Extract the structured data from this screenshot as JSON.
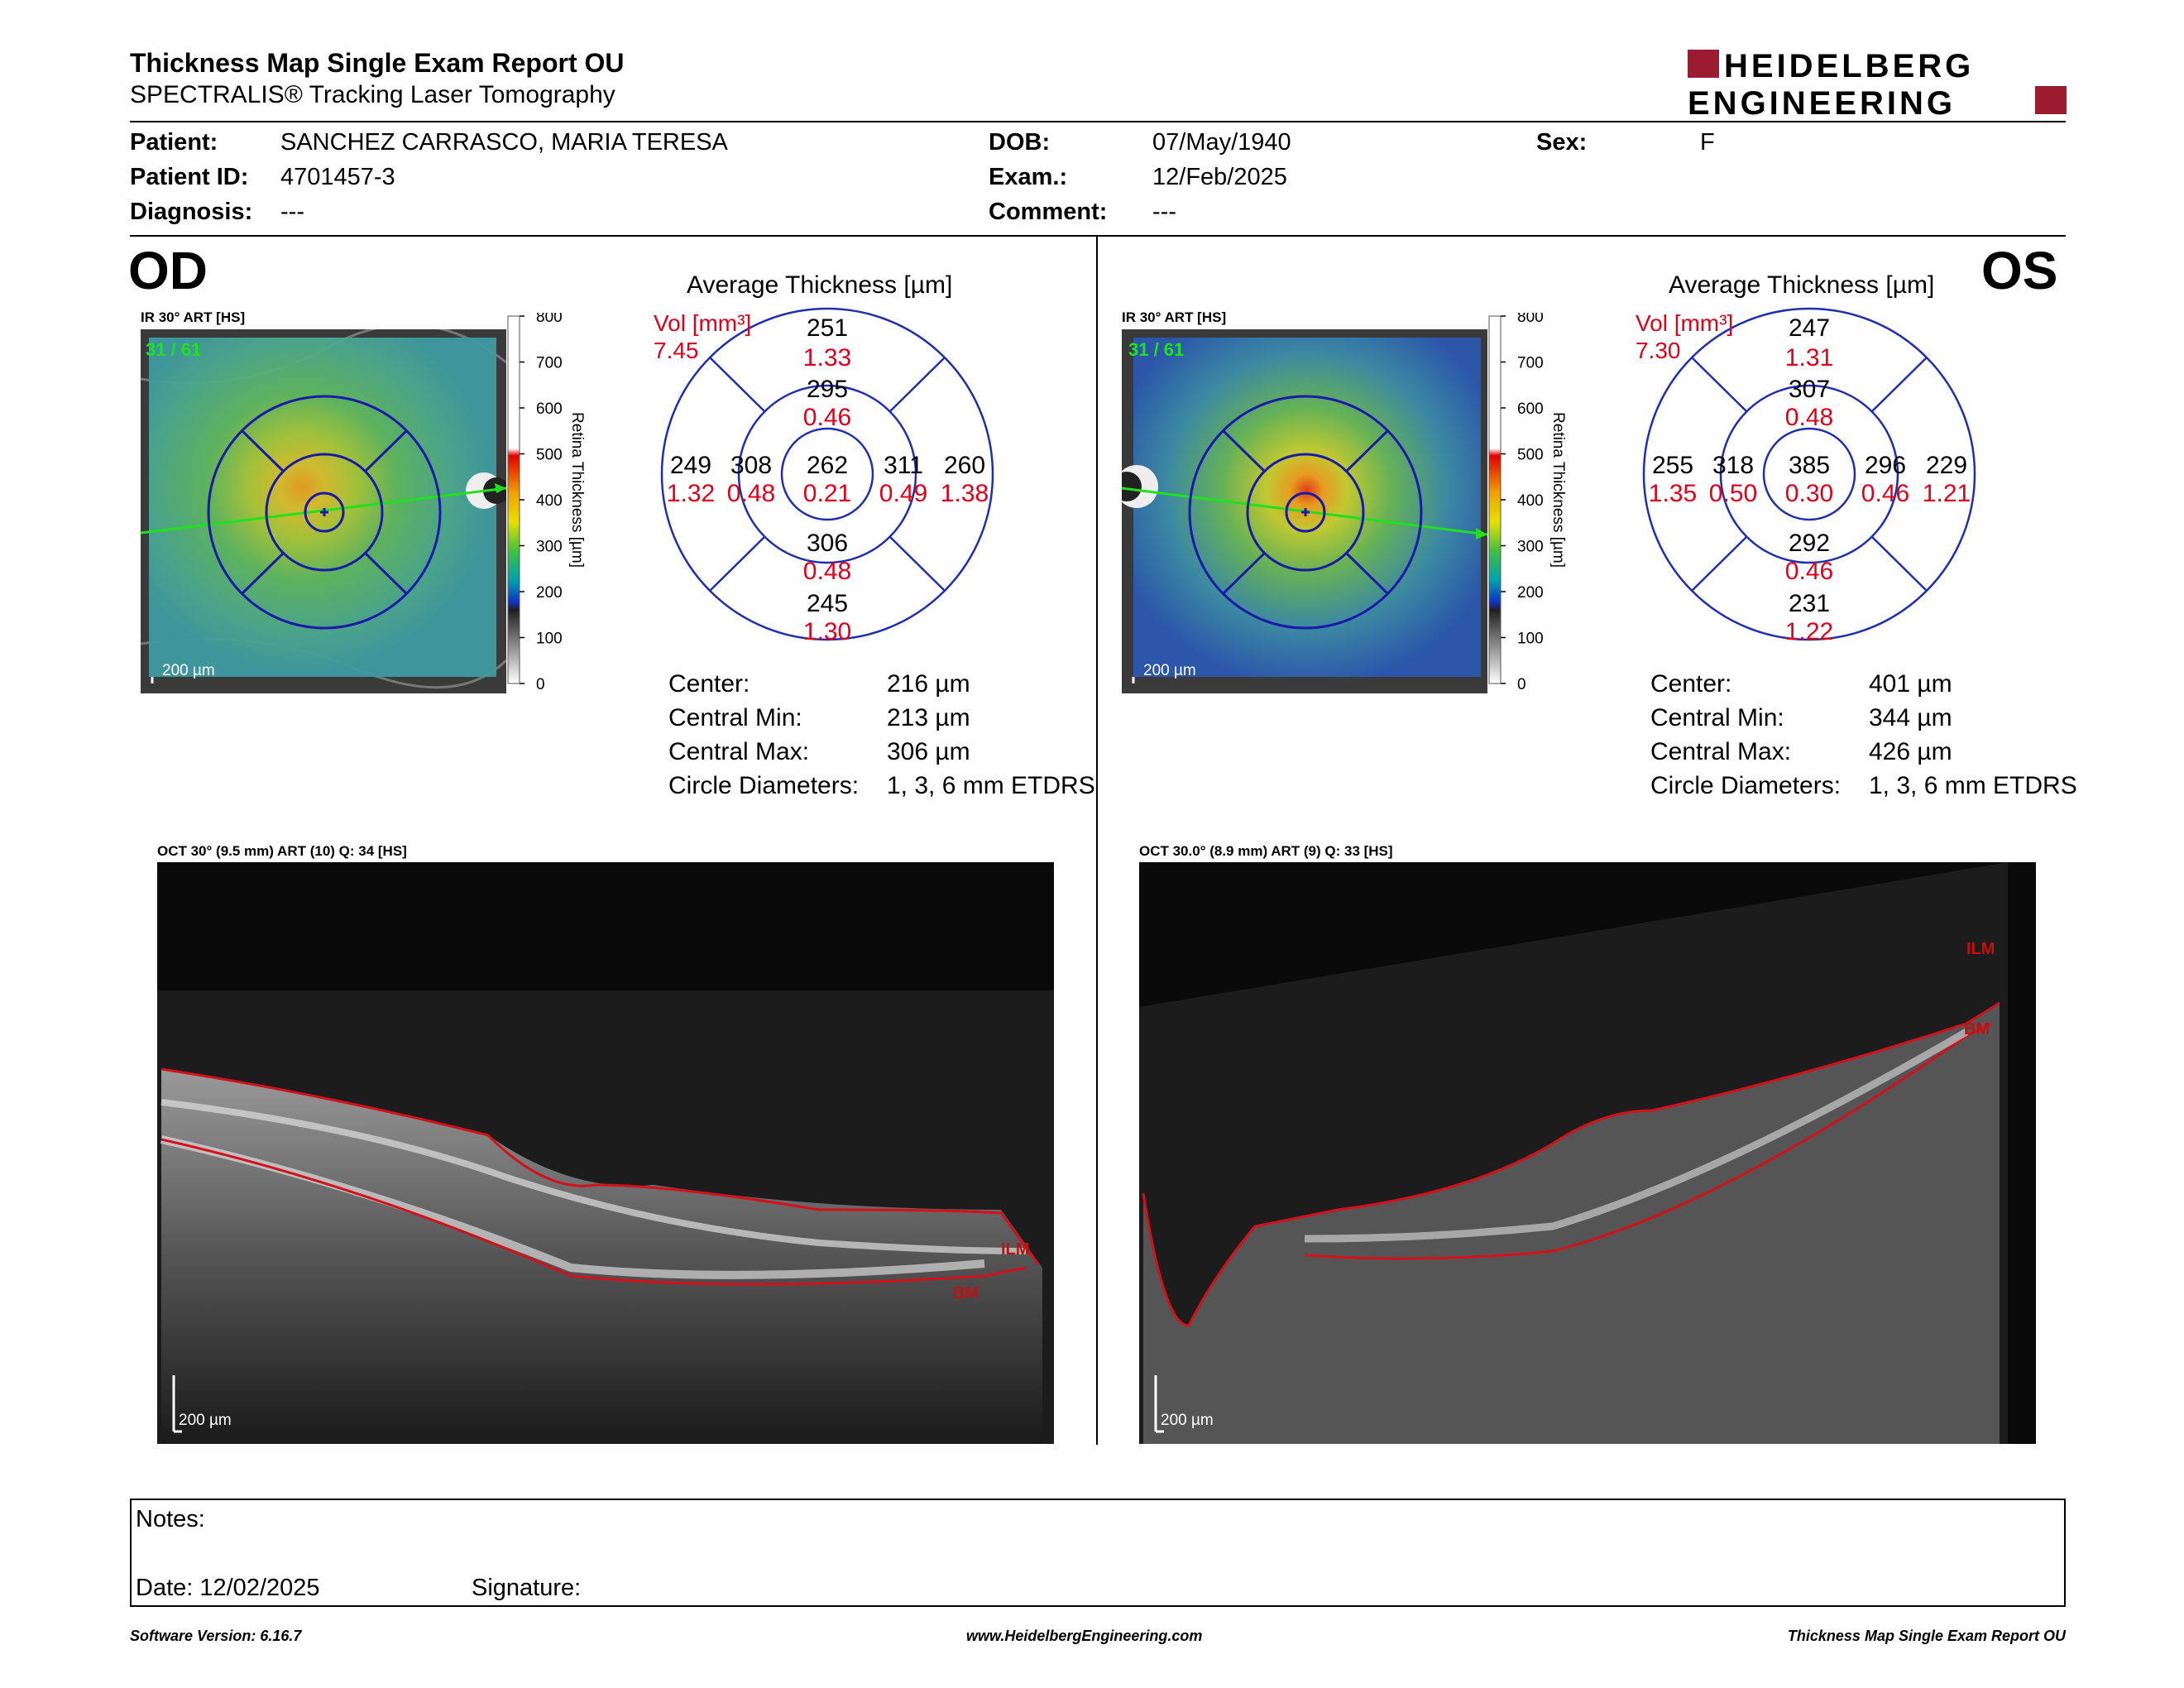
{
  "header": {
    "title": "Thickness Map Single Exam Report OU",
    "subtitle": "SPECTRALIS® Tracking Laser Tomography",
    "logo_line1": "HEIDELBERG",
    "logo_line2": "ENGINEERING"
  },
  "patient": {
    "patient_label": "Patient:",
    "patient_value": "SANCHEZ CARRASCO, MARIA TERESA",
    "id_label": "Patient ID:",
    "id_value": "4701457-3",
    "diag_label": "Diagnosis:",
    "diag_value": "---",
    "dob_label": "DOB:",
    "dob_value": "07/May/1940",
    "exam_label": "Exam.:",
    "exam_value": "12/Feb/2025",
    "comment_label": "Comment:",
    "comment_value": "---",
    "sex_label": "Sex:",
    "sex_value": "F"
  },
  "colorbar": {
    "ticks": [
      "800",
      "700",
      "600",
      "500",
      "400",
      "300",
      "200",
      "100",
      "0"
    ],
    "title": "Retina  Thickness [µm]"
  },
  "od": {
    "eye": "OD",
    "ir_label": "IR 30° ART [HS]",
    "ir_frames": "31 / 61",
    "scale": "200 µm",
    "chart_title": "Average Thickness [µm]",
    "vol_label": "Vol [mm³]",
    "vol_total": "7.45",
    "sectors": {
      "outer_sup": [
        "251",
        "1.33"
      ],
      "inner_sup": [
        "295",
        "0.46"
      ],
      "outer_temp": [
        "249",
        "1.32"
      ],
      "inner_temp": [
        "308",
        "0.48"
      ],
      "center": [
        "262",
        "0.21"
      ],
      "inner_nas": [
        "311",
        "0.49"
      ],
      "outer_nas": [
        "260",
        "1.38"
      ],
      "inner_inf": [
        "306",
        "0.48"
      ],
      "outer_inf": [
        "245",
        "1.30"
      ]
    },
    "stats": [
      [
        "Center:",
        "216 µm"
      ],
      [
        "Central Min:",
        "213 µm"
      ],
      [
        "Central Max:",
        "306 µm"
      ],
      [
        "Circle Diameters:",
        "1, 3, 6 mm ETDRS"
      ]
    ],
    "oct_label": "OCT 30° (9.5 mm) ART (10) Q: 34 [HS]",
    "oct_scale": "200 µm",
    "ilm": "ILM",
    "bm": "BM"
  },
  "os": {
    "eye": "OS",
    "ir_label": "IR 30° ART [HS]",
    "ir_frames": "31 / 61",
    "scale": "200 µm",
    "chart_title": "Average Thickness [µm]",
    "vol_label": "Vol [mm³]",
    "vol_total": "7.30",
    "sectors": {
      "outer_sup": [
        "247",
        "1.31"
      ],
      "inner_sup": [
        "307",
        "0.48"
      ],
      "outer_temp": [
        "255",
        "1.35"
      ],
      "inner_temp": [
        "318",
        "0.50"
      ],
      "center": [
        "385",
        "0.30"
      ],
      "inner_nas": [
        "296",
        "0.46"
      ],
      "outer_nas": [
        "229",
        "1.21"
      ],
      "inner_inf": [
        "292",
        "0.46"
      ],
      "outer_inf": [
        "231",
        "1.22"
      ]
    },
    "stats": [
      [
        "Center:",
        "401 µm"
      ],
      [
        "Central Min:",
        "344 µm"
      ],
      [
        "Central Max:",
        "426 µm"
      ],
      [
        "Circle Diameters:",
        "1, 3, 6 mm ETDRS"
      ]
    ],
    "oct_label": "OCT 30.0° (8.9 mm) ART (9) Q: 33 [HS]",
    "oct_scale": "200 µm",
    "ilm": "ILM",
    "bm": "BM"
  },
  "notes": {
    "notes_label": "Notes:",
    "date_label": "Date: 12/02/2025",
    "signature_label": "Signature:"
  },
  "footer": {
    "software": "Software Version: 6.16.7",
    "website": "www.HeidelbergEngineering.com",
    "report": "Thickness Map Single Exam Report OU"
  },
  "colors": {
    "brand_red": "#9b1b30",
    "etdrs_blue": "#1f2fb0",
    "vol_red": "#e0001a",
    "seg_red": "#d4101a"
  }
}
